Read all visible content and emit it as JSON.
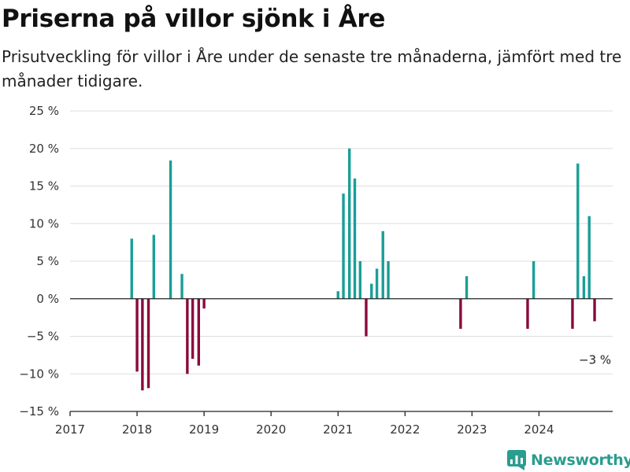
{
  "header": {
    "title": "Priserna på villor sjönk i Åre",
    "subtitle": "Prisutveckling för villor i Åre under de senaste tre månaderna, jämfört med tre månader tidigare."
  },
  "brand": {
    "name": "Newsworthy",
    "icon": "bar-chart-logo-icon",
    "color": "#2a9d8f"
  },
  "colors": {
    "positive": "#1a9e96",
    "negative": "#8a0a3c",
    "grid": "#dddddd",
    "axis": "#222222"
  },
  "chart_data": {
    "type": "bar",
    "title": "Priserna på villor sjönk i Åre",
    "subtitle": "Prisutveckling för villor i Åre under de senaste tre månaderna, jämfört med tre månader tidigare.",
    "ylabel": "",
    "xlabel": "",
    "ylim": [
      -15,
      25
    ],
    "xlim": [
      2017.0,
      2025.1
    ],
    "y_ticks": [
      {
        "value": 25,
        "label": "25 %"
      },
      {
        "value": 20,
        "label": "20 %"
      },
      {
        "value": 15,
        "label": "15 %"
      },
      {
        "value": 10,
        "label": "10 %"
      },
      {
        "value": 5,
        "label": "5 %"
      },
      {
        "value": 0,
        "label": "0 %"
      },
      {
        "value": -5,
        "label": "−5 %"
      },
      {
        "value": -10,
        "label": "−10 %"
      },
      {
        "value": -15,
        "label": "−15 %"
      }
    ],
    "x_ticks": [
      {
        "value": 2017,
        "label": "2017"
      },
      {
        "value": 2018,
        "label": "2018"
      },
      {
        "value": 2019,
        "label": "2019"
      },
      {
        "value": 2020,
        "label": "2020"
      },
      {
        "value": 2021,
        "label": "2021"
      },
      {
        "value": 2022,
        "label": "2022"
      },
      {
        "value": 2023,
        "label": "2023"
      },
      {
        "value": 2024,
        "label": "2024"
      }
    ],
    "grid": true,
    "points": [
      {
        "x": 2017.92,
        "y": 8
      },
      {
        "x": 2018.0,
        "y": -9.7
      },
      {
        "x": 2018.08,
        "y": -12.2
      },
      {
        "x": 2018.17,
        "y": -11.9
      },
      {
        "x": 2018.25,
        "y": 8.5
      },
      {
        "x": 2018.5,
        "y": 18.4
      },
      {
        "x": 2018.67,
        "y": 3.3
      },
      {
        "x": 2018.75,
        "y": -10
      },
      {
        "x": 2018.83,
        "y": -8
      },
      {
        "x": 2018.92,
        "y": -8.9
      },
      {
        "x": 2019.0,
        "y": -1.3
      },
      {
        "x": 2021.0,
        "y": 1
      },
      {
        "x": 2021.08,
        "y": 14
      },
      {
        "x": 2021.17,
        "y": 20
      },
      {
        "x": 2021.25,
        "y": 16
      },
      {
        "x": 2021.33,
        "y": 5
      },
      {
        "x": 2021.42,
        "y": -5
      },
      {
        "x": 2021.5,
        "y": 2
      },
      {
        "x": 2021.58,
        "y": 4
      },
      {
        "x": 2021.67,
        "y": 9
      },
      {
        "x": 2021.75,
        "y": 5
      },
      {
        "x": 2022.83,
        "y": -4
      },
      {
        "x": 2022.92,
        "y": 3
      },
      {
        "x": 2023.83,
        "y": -4
      },
      {
        "x": 2023.92,
        "y": 5
      },
      {
        "x": 2024.5,
        "y": -4
      },
      {
        "x": 2024.58,
        "y": 18
      },
      {
        "x": 2024.67,
        "y": 3
      },
      {
        "x": 2024.75,
        "y": 11
      },
      {
        "x": 2024.83,
        "y": -3
      }
    ],
    "annotations": [
      {
        "x": 2024.83,
        "y": -3,
        "label": "−3 %"
      }
    ]
  }
}
